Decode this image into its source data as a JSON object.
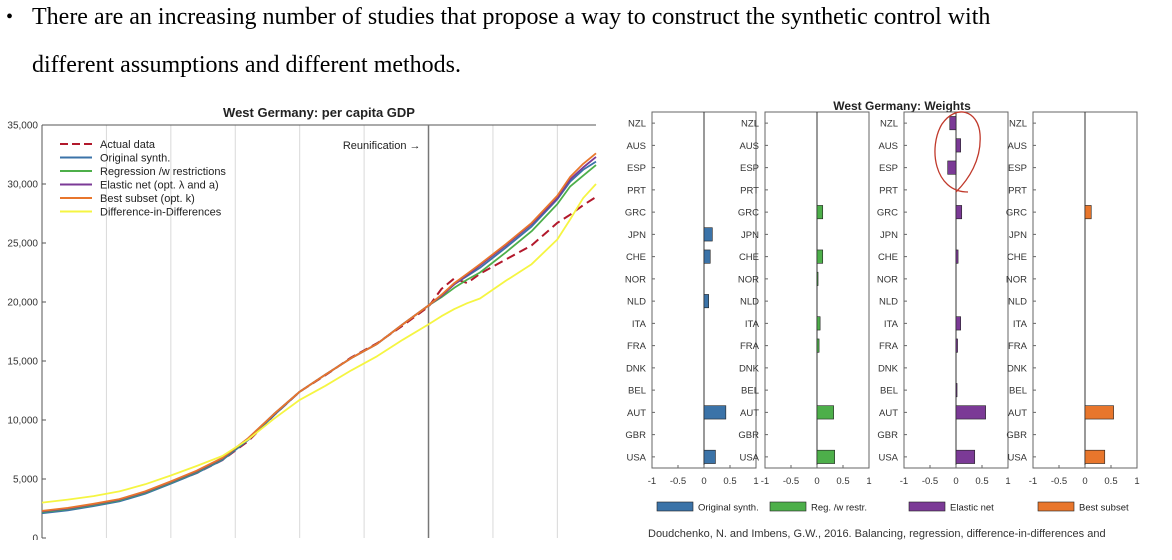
{
  "slide": {
    "bullet": "•",
    "line1": "There are an increasing number of studies that propose a way to construct the synthetic control with",
    "line2": "different assumptions and different methods."
  },
  "citation": "Doudchenko, N. and Imbens, G.W., 2016. Balancing, regression, difference-in-differences and",
  "chart_data": [
    {
      "type": "line",
      "title": "West Germany: per capita GDP",
      "ylim": [
        0,
        35000
      ],
      "xlim": [
        1960,
        2003
      ],
      "yticks": [
        0,
        5000,
        10000,
        15000,
        20000,
        25000,
        30000,
        35000
      ],
      "ytick_labels": [
        "0",
        "5,000",
        "10,000",
        "15,000",
        "20,000",
        "25,000",
        "30,000",
        "35,000"
      ],
      "grid_x": [
        1965,
        1970,
        1975,
        1980,
        1985,
        1990,
        1995,
        2000
      ],
      "annotation": {
        "text": "Reunification →",
        "x": 1990
      },
      "legend_position": "top-left",
      "x": [
        1960,
        1962,
        1964,
        1966,
        1968,
        1970,
        1972,
        1974,
        1976,
        1978,
        1980,
        1982,
        1984,
        1986,
        1988,
        1990,
        1991,
        1992,
        1993,
        1994,
        1996,
        1998,
        2000,
        2001,
        2002,
        2003
      ],
      "series": [
        {
          "name": "Actual data",
          "color": "#b2182b",
          "dash": true,
          "values": [
            2250,
            2450,
            2750,
            3150,
            3800,
            4650,
            5500,
            6600,
            8200,
            10400,
            12400,
            13800,
            15300,
            16500,
            18000,
            19600,
            21100,
            22000,
            21600,
            22400,
            23600,
            24800,
            26700,
            27400,
            28200,
            28900
          ]
        },
        {
          "name": "Original synth.",
          "color": "#3b73a8",
          "values": [
            2100,
            2350,
            2700,
            3100,
            3750,
            4600,
            5500,
            6600,
            8300,
            10400,
            12400,
            13850,
            15250,
            16450,
            18100,
            19700,
            20600,
            21500,
            22200,
            22900,
            24600,
            26400,
            28700,
            30200,
            31200,
            31900
          ]
        },
        {
          "name": "Regression /w restrictions",
          "color": "#4daf4a",
          "values": [
            2200,
            2450,
            2800,
            3200,
            3850,
            4700,
            5600,
            6700,
            8400,
            10500,
            12400,
            13850,
            15250,
            16450,
            18100,
            19700,
            20400,
            21200,
            21900,
            22500,
            24200,
            26000,
            28300,
            29800,
            30700,
            31600
          ]
        },
        {
          "name": "Elastic net (opt. λ and a)",
          "color": "#7b3a96",
          "values": [
            2250,
            2500,
            2850,
            3250,
            3900,
            4750,
            5650,
            6750,
            8450,
            10500,
            12400,
            13850,
            15250,
            16450,
            18100,
            19700,
            20500,
            21500,
            22300,
            23100,
            24800,
            26600,
            28800,
            30400,
            31400,
            32300
          ]
        },
        {
          "name": "Best subset (opt. k)",
          "color": "#e8762c",
          "values": [
            2300,
            2550,
            2900,
            3300,
            3950,
            4800,
            5700,
            6800,
            8450,
            10500,
            12400,
            13850,
            15250,
            16450,
            18100,
            19700,
            20600,
            21600,
            22400,
            23200,
            24900,
            26700,
            29000,
            30600,
            31700,
            32600
          ]
        },
        {
          "name": "Difference-in-Differences",
          "color": "#f5f542",
          "values": [
            3000,
            3250,
            3550,
            3950,
            4550,
            5300,
            6100,
            6950,
            8350,
            10100,
            11700,
            12900,
            14200,
            15400,
            16800,
            18100,
            18800,
            19400,
            19900,
            20300,
            21800,
            23200,
            25300,
            27000,
            28800,
            30000
          ]
        }
      ]
    },
    {
      "type": "bar",
      "orientation": "horizontal",
      "title": "West Germany: Weights",
      "categories": [
        "NZL",
        "AUS",
        "ESP",
        "PRT",
        "GRC",
        "JPN",
        "CHE",
        "NOR",
        "NLD",
        "ITA",
        "FRA",
        "DNK",
        "BEL",
        "AUT",
        "GBR",
        "USA"
      ],
      "xlim": [
        -1,
        1
      ],
      "xticks": [
        -1,
        -0.5,
        0,
        0.5,
        1
      ],
      "xtick_labels": [
        "-1",
        "-0.5",
        "0",
        "0.5",
        "1"
      ],
      "legend_position": "bottom",
      "panels": [
        {
          "name": "Original synth.",
          "color": "#3b73a8",
          "values": [
            0,
            0,
            0,
            0,
            0,
            0.16,
            0.12,
            0,
            0.09,
            0,
            0,
            0,
            0,
            0.42,
            0,
            0.22
          ]
        },
        {
          "name": "Reg. /w restr.",
          "color": "#4daf4a",
          "values": [
            0,
            0,
            0,
            0,
            0.11,
            0,
            0.11,
            0.02,
            0,
            0.06,
            0.04,
            0,
            0,
            0.32,
            0,
            0.34
          ]
        },
        {
          "name": "Elastic net",
          "color": "#7b3a96",
          "values": [
            -0.12,
            0.09,
            -0.16,
            0,
            0.11,
            0,
            0.04,
            0,
            0,
            0.09,
            0.03,
            0,
            0.02,
            0.57,
            0,
            0.36
          ]
        },
        {
          "name": "Best subset",
          "color": "#e8762c",
          "values": [
            0,
            0,
            0,
            0,
            0.12,
            0,
            0,
            0,
            0,
            0,
            0,
            0,
            0,
            0.55,
            0,
            0.38
          ]
        }
      ]
    }
  ]
}
